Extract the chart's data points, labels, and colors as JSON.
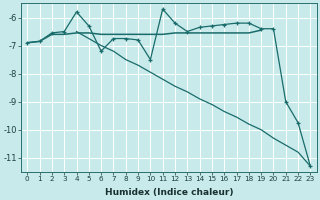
{
  "xlabel": "Humidex (Indice chaleur)",
  "bg_color": "#c8eaea",
  "grid_color": "#ffffff",
  "line_color": "#1a6b6b",
  "xlim": [
    -0.5,
    23.5
  ],
  "ylim": [
    -11.5,
    -5.5
  ],
  "yticks": [
    -11,
    -10,
    -9,
    -8,
    -7,
    -6
  ],
  "xticks": [
    0,
    1,
    2,
    3,
    4,
    5,
    6,
    7,
    8,
    9,
    10,
    11,
    12,
    13,
    14,
    15,
    16,
    17,
    18,
    19,
    20,
    21,
    22,
    23
  ],
  "jagged_x": [
    0,
    1,
    2,
    3,
    4,
    5,
    6,
    7,
    8,
    9,
    10,
    11,
    12,
    13,
    14,
    15,
    16,
    17,
    18,
    19,
    20,
    21,
    22,
    23
  ],
  "jagged_y": [
    -6.9,
    -6.85,
    -6.55,
    -6.5,
    -5.8,
    -6.3,
    -7.2,
    -6.75,
    -6.75,
    -6.8,
    -7.5,
    -5.7,
    -6.2,
    -6.5,
    -6.35,
    -6.3,
    -6.25,
    -6.2,
    -6.2,
    -6.4,
    -6.4,
    -9.0,
    -9.75,
    -11.3
  ],
  "hline_x": [
    0,
    1,
    2,
    3,
    4,
    5,
    6,
    7,
    8,
    9,
    10,
    11,
    12,
    13,
    14,
    15,
    16,
    17,
    18,
    19
  ],
  "hline_y": [
    -6.9,
    -6.85,
    -6.6,
    -6.6,
    -6.55,
    -6.55,
    -6.6,
    -6.6,
    -6.6,
    -6.6,
    -6.6,
    -6.6,
    -6.55,
    -6.55,
    -6.55,
    -6.55,
    -6.55,
    -6.55,
    -6.55,
    -6.45
  ],
  "diag_x": [
    4,
    5,
    6,
    7,
    8,
    9,
    10,
    11,
    12,
    13,
    14,
    15,
    16,
    17,
    18,
    19,
    20,
    21,
    22,
    23
  ],
  "diag_y": [
    -6.5,
    -6.75,
    -7.0,
    -7.2,
    -7.5,
    -7.7,
    -7.95,
    -8.2,
    -8.45,
    -8.65,
    -8.9,
    -9.1,
    -9.35,
    -9.55,
    -9.8,
    -10.0,
    -10.3,
    -10.55,
    -10.8,
    -11.3
  ]
}
